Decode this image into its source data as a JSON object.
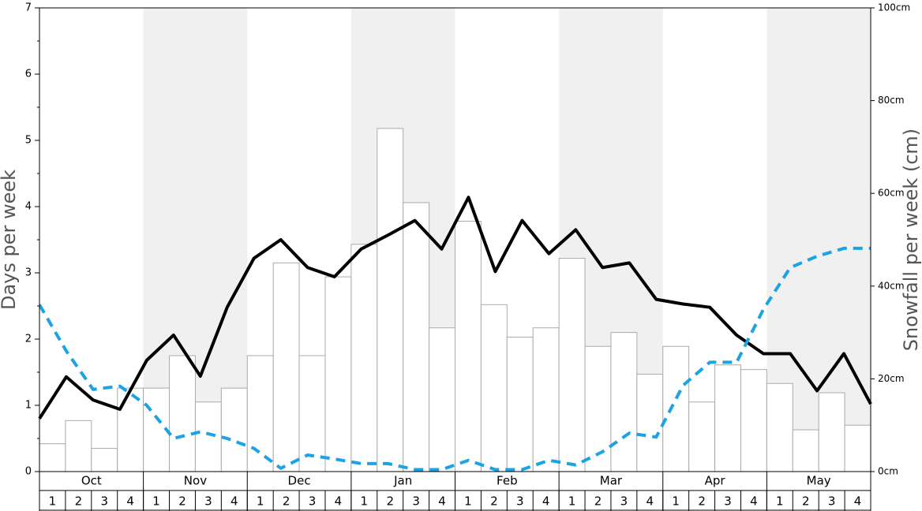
{
  "chart_data": {
    "type": "bar",
    "y_label": "Days per week",
    "y2_label": "Snowfall per week (cm)",
    "months": [
      "Oct",
      "Nov",
      "Dec",
      "Jan",
      "Feb",
      "Mar",
      "Apr",
      "May"
    ],
    "categories": [
      "1",
      "2",
      "3",
      "4",
      "1",
      "2",
      "3",
      "4",
      "1",
      "2",
      "3",
      "4",
      "1",
      "2",
      "3",
      "4",
      "1",
      "2",
      "3",
      "4",
      "1",
      "2",
      "3",
      "4",
      "1",
      "2",
      "3",
      "4",
      "1",
      "2",
      "3",
      "4"
    ],
    "ylim": [
      0,
      7
    ],
    "yticks": [
      0,
      1,
      2,
      3,
      4,
      5,
      6,
      7
    ],
    "y2lim": [
      0,
      100
    ],
    "y2ticks": [
      {
        "value": 0,
        "label": "0cm"
      },
      {
        "value": 20,
        "label": "20cm"
      },
      {
        "value": 40,
        "label": "40cm"
      },
      {
        "value": 60,
        "label": "60cm"
      },
      {
        "value": 80,
        "label": "80cm"
      },
      {
        "value": 100,
        "label": "100cm"
      }
    ],
    "series": [
      {
        "type": "bar",
        "axis": "y2",
        "color": "#ffffff",
        "values": [
          6,
          11,
          5,
          18,
          18,
          25,
          15,
          18,
          25,
          45,
          25,
          42,
          49,
          74,
          58,
          31,
          54,
          36,
          29,
          31,
          46,
          27,
          30,
          21,
          27,
          15,
          23,
          22,
          19,
          9,
          17,
          10
        ]
      },
      {
        "type": "line",
        "color": "#000000",
        "values": [
          0.8,
          1.43,
          1.08,
          0.94,
          1.68,
          2.06,
          1.44,
          2.48,
          3.22,
          3.5,
          3.08,
          2.94,
          3.36,
          3.57,
          3.79,
          3.36,
          4.14,
          3.02,
          3.79,
          3.29,
          3.65,
          3.08,
          3.15,
          2.6,
          2.53,
          2.48,
          2.06,
          1.78,
          1.78,
          1.22,
          1.78,
          1.02
        ]
      },
      {
        "type": "line",
        "dashed": true,
        "color": "#1ca3e3",
        "values": [
          2.52,
          1.82,
          1.24,
          1.29,
          1.0,
          0.5,
          0.6,
          0.5,
          0.35,
          0.05,
          0.25,
          0.19,
          0.12,
          0.12,
          0.03,
          0.03,
          0.17,
          0.03,
          0.03,
          0.17,
          0.1,
          0.3,
          0.58,
          0.52,
          1.3,
          1.65,
          1.65,
          2.45,
          3.08,
          3.25,
          3.37,
          3.37
        ]
      }
    ]
  }
}
